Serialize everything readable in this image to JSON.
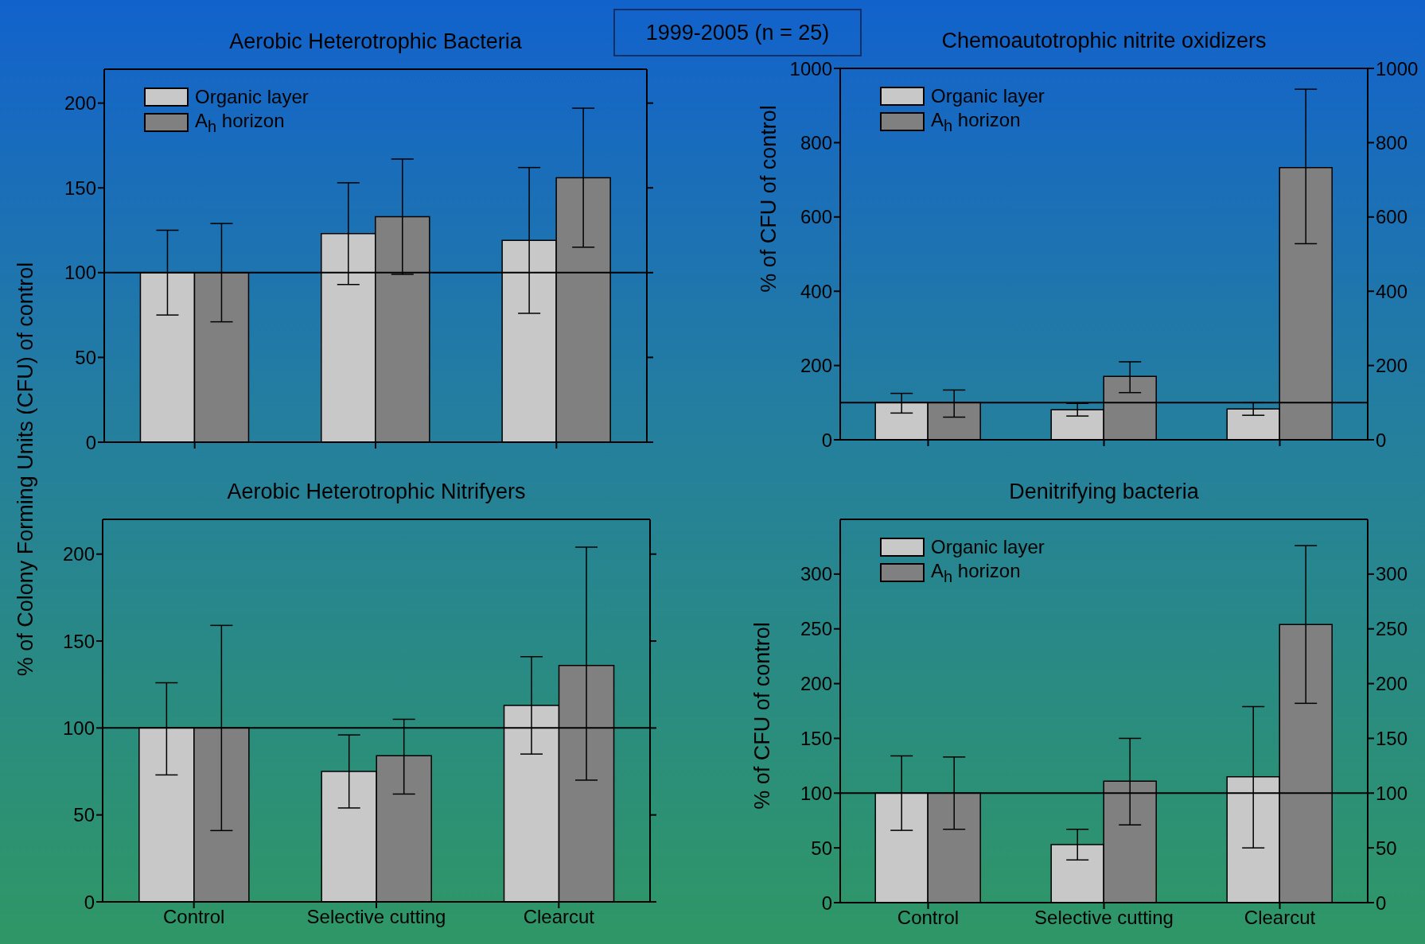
{
  "chart_data": [
    {
      "type": "bar",
      "title": "Aerobic Heterotrophic Bacteria",
      "ylabel": "% of Colony Forming Units (CFU) of control",
      "annotations": [
        "1999-2005 (n = 25)"
      ],
      "categories": [
        null,
        null,
        null
      ],
      "ylim": [
        0,
        220
      ],
      "yticks": [
        0,
        50,
        100,
        150,
        200
      ],
      "tick_labels": "y",
      "legend": "top left",
      "ref_lines": [
        {
          "axis": "y",
          "value": 100,
          "color": "#000000"
        }
      ],
      "series": [
        {
          "name": "Organic layer",
          "color": "#c8c8c8",
          "values": [
            100,
            123,
            119
          ],
          "errors": [
            [
              75,
              125
            ],
            [
              93,
              153
            ],
            [
              76,
              162
            ]
          ]
        },
        {
          "name": "A$_{h}$ horizon",
          "color": "#808080",
          "values": [
            100,
            133,
            156
          ],
          "errors": [
            [
              71,
              129
            ],
            [
              99,
              167
            ],
            [
              115,
              197
            ]
          ]
        }
      ]
    },
    {
      "type": "bar",
      "title": "Chemoautotrophic nitrite oxidizers",
      "ylabel": "% of CFU of control",
      "categories": [
        null,
        null,
        null
      ],
      "ylim": [
        0,
        1000
      ],
      "yticks": [
        0,
        200,
        400,
        600,
        800,
        1000
      ],
      "y2lim": [
        0,
        1000
      ],
      "y2ticks": [
        0,
        200,
        400,
        600,
        800,
        1000
      ],
      "tick_labels": "y",
      "legend": "top left",
      "ref_lines": [
        {
          "axis": "y",
          "value": 100,
          "color": "#000000"
        }
      ],
      "series": [
        {
          "name": "Organic layer",
          "color": "#c8c8c8",
          "values": [
            100,
            81,
            83
          ],
          "errors": [
            [
              72,
              125
            ],
            [
              64,
              98
            ],
            [
              66,
              100
            ]
          ]
        },
        {
          "name": "A$_{h}$ horizon",
          "color": "#808080",
          "values": [
            100,
            171,
            733
          ],
          "errors": [
            [
              61,
              134
            ],
            [
              127,
              210
            ],
            [
              528,
              944
            ]
          ]
        }
      ]
    },
    {
      "type": "bar",
      "title": "Aerobic Heterotrophic Nitrifyers",
      "categories": [
        "Control",
        "Selective cutting",
        "Clearcut"
      ],
      "ylim": [
        0,
        220
      ],
      "yticks": [
        0,
        50,
        100,
        150,
        200
      ],
      "ref_lines": [
        {
          "axis": "y",
          "value": 100,
          "color": "#000000"
        }
      ],
      "series": [
        {
          "color": "#c8c8c8",
          "values": [
            100,
            75,
            113
          ],
          "errors": [
            [
              73,
              126
            ],
            [
              54,
              96
            ],
            [
              85,
              141
            ]
          ]
        },
        {
          "color": "#808080",
          "values": [
            100,
            84,
            136
          ],
          "errors": [
            [
              41,
              159
            ],
            [
              62,
              105
            ],
            [
              70,
              204
            ]
          ]
        }
      ]
    },
    {
      "type": "bar",
      "title": "Denitrifying bacteria",
      "ylabel": "% of CFU of control",
      "categories": [
        "Control",
        "Selective cutting",
        "Clearcut"
      ],
      "ylim": [
        0,
        350
      ],
      "yticks": [
        0,
        50,
        100,
        150,
        200,
        250,
        300
      ],
      "y2lim": [
        0,
        350
      ],
      "y2ticks": [
        0,
        50,
        100,
        150,
        200,
        250,
        300
      ],
      "legend": "top left",
      "ref_lines": [
        {
          "axis": "y",
          "value": 100,
          "color": "#000000"
        }
      ],
      "series": [
        {
          "name": "Organic layer",
          "color": "#c8c8c8",
          "values": [
            100,
            53,
            115
          ],
          "errors": [
            [
              66,
              134
            ],
            [
              39,
              67
            ],
            [
              50,
              179
            ]
          ]
        },
        {
          "name": "A$_{h}$ horizon",
          "color": "#808080",
          "values": [
            100,
            111,
            254
          ],
          "errors": [
            [
              67,
              133
            ],
            [
              71,
              150
            ],
            [
              182,
              326
            ]
          ]
        }
      ]
    }
  ]
}
